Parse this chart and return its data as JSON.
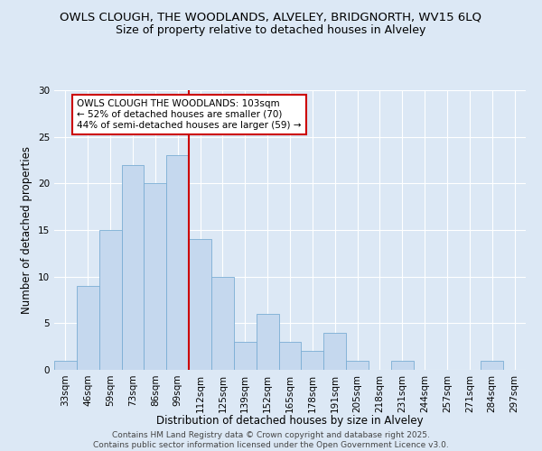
{
  "title1": "OWLS CLOUGH, THE WOODLANDS, ALVELEY, BRIDGNORTH, WV15 6LQ",
  "title2": "Size of property relative to detached houses in Alveley",
  "xlabel": "Distribution of detached houses by size in Alveley",
  "ylabel": "Number of detached properties",
  "categories": [
    "33sqm",
    "46sqm",
    "59sqm",
    "73sqm",
    "86sqm",
    "99sqm",
    "112sqm",
    "125sqm",
    "139sqm",
    "152sqm",
    "165sqm",
    "178sqm",
    "191sqm",
    "205sqm",
    "218sqm",
    "231sqm",
    "244sqm",
    "257sqm",
    "271sqm",
    "284sqm",
    "297sqm"
  ],
  "values": [
    1,
    9,
    15,
    22,
    20,
    23,
    14,
    10,
    3,
    6,
    3,
    2,
    4,
    1,
    0,
    1,
    0,
    0,
    0,
    1,
    0
  ],
  "bar_color": "#c5d8ee",
  "bar_edge_color": "#7aadd4",
  "vline_x_idx": 6,
  "vline_color": "#cc0000",
  "annotation_text": "OWLS CLOUGH THE WOODLANDS: 103sqm\n← 52% of detached houses are smaller (70)\n44% of semi-detached houses are larger (59) →",
  "annotation_box_color": "#ffffff",
  "annotation_edge_color": "#cc0000",
  "ylim": [
    0,
    30
  ],
  "yticks": [
    0,
    5,
    10,
    15,
    20,
    25,
    30
  ],
  "footer": "Contains HM Land Registry data © Crown copyright and database right 2025.\nContains public sector information licensed under the Open Government Licence v3.0.",
  "background_color": "#dce8f5",
  "plot_bg_color": "#dce8f5",
  "grid_color": "#ffffff",
  "title_fontsize": 9.5,
  "subtitle_fontsize": 9,
  "axis_label_fontsize": 8.5,
  "tick_fontsize": 7.5,
  "annotation_fontsize": 7.5,
  "footer_fontsize": 6.5
}
